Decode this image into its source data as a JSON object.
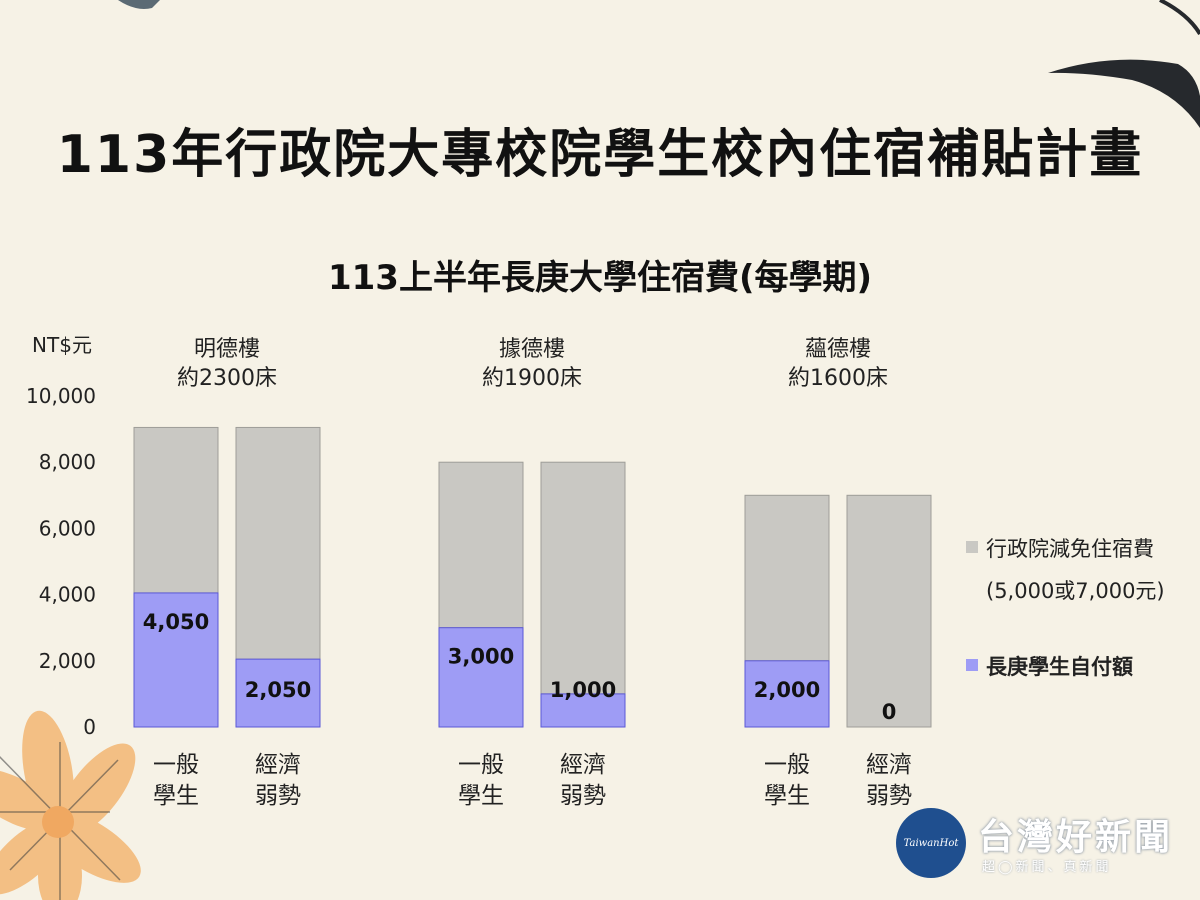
{
  "header": {
    "title": "113年行政院大專校院學生校內住宿補貼計畫"
  },
  "watermark": {
    "brand": "台灣好新聞",
    "badge": "TaiwanHot",
    "tagline": "超◯新聞、真新聞"
  },
  "chart_data": {
    "type": "bar",
    "stacked": true,
    "title": "113上半年長庚大學住宿費(每學期)",
    "ylabel": "NT$元",
    "ylim": [
      0,
      10000
    ],
    "yticks": [
      "0",
      "2,000",
      "4,000",
      "6,000",
      "8,000",
      "10,000"
    ],
    "grid": false,
    "legend_position": "right",
    "colors": {
      "self_pay": "#9e9cf5",
      "self_pay_edge": "#5b58d6",
      "subsidy": "#c9c8c3"
    },
    "groups": [
      {
        "name": "明德樓",
        "beds": "約2300床",
        "bars": [
          {
            "label": [
              "一般",
              "學生"
            ],
            "self_pay": 4050,
            "self_pay_label": "4,050",
            "subsidy": 5000
          },
          {
            "label": [
              "經濟",
              "弱勢"
            ],
            "self_pay": 2050,
            "self_pay_label": "2,050",
            "subsidy": 7000
          }
        ]
      },
      {
        "name": "據德樓",
        "beds": "約1900床",
        "bars": [
          {
            "label": [
              "一般",
              "學生"
            ],
            "self_pay": 3000,
            "self_pay_label": "3,000",
            "subsidy": 5000
          },
          {
            "label": [
              "經濟",
              "弱勢"
            ],
            "self_pay": 1000,
            "self_pay_label": "1,000",
            "subsidy": 7000
          }
        ]
      },
      {
        "name": "蘊德樓",
        "beds": "約1600床",
        "bars": [
          {
            "label": [
              "一般",
              "學生"
            ],
            "self_pay": 2000,
            "self_pay_label": "2,000",
            "subsidy": 5000
          },
          {
            "label": [
              "經濟",
              "弱勢"
            ],
            "self_pay": 0,
            "self_pay_label": "0",
            "subsidy": 7000
          }
        ]
      }
    ],
    "legend": {
      "subsidy": [
        "行政院減免住宿費",
        "(5,000或7,000元)"
      ],
      "self_pay": "長庚學生自付額"
    }
  }
}
